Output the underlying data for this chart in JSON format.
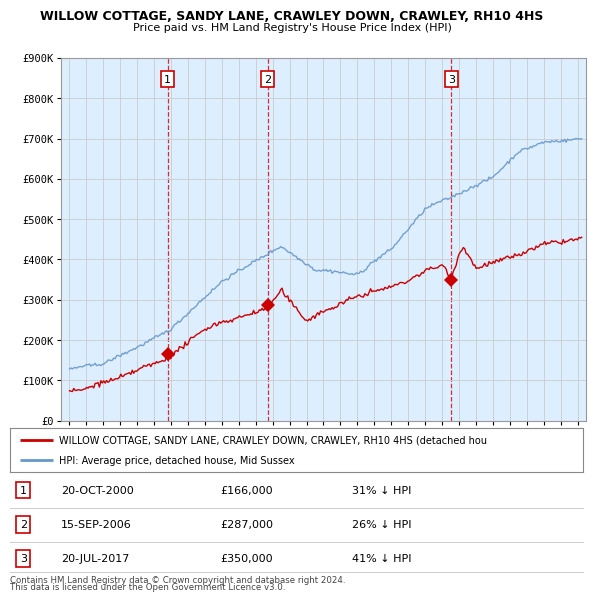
{
  "title": "WILLOW COTTAGE, SANDY LANE, CRAWLEY DOWN, CRAWLEY, RH10 4HS",
  "subtitle": "Price paid vs. HM Land Registry's House Price Index (HPI)",
  "ylim": [
    0,
    900000
  ],
  "xlim_start": 1994.5,
  "xlim_end": 2025.5,
  "sale_dates": [
    2000.8,
    2006.7,
    2017.55
  ],
  "sale_prices": [
    166000,
    287000,
    350000
  ],
  "sale_labels": [
    "1",
    "2",
    "3"
  ],
  "sale_date_strs": [
    "20-OCT-2000",
    "15-SEP-2006",
    "20-JUL-2017"
  ],
  "sale_price_strs": [
    "£166,000",
    "£287,000",
    "£350,000"
  ],
  "sale_hpi_strs": [
    "31% ↓ HPI",
    "26% ↓ HPI",
    "41% ↓ HPI"
  ],
  "legend_red": "WILLOW COTTAGE, SANDY LANE, CRAWLEY DOWN, CRAWLEY, RH10 4HS (detached hou",
  "legend_blue": "HPI: Average price, detached house, Mid Sussex",
  "footer1": "Contains HM Land Registry data © Crown copyright and database right 2024.",
  "footer2": "This data is licensed under the Open Government Licence v3.0.",
  "red_color": "#cc0000",
  "blue_color": "#6699cc",
  "grid_color": "#cccccc",
  "background_color": "#ffffff",
  "plot_bg_color": "#ddeeff"
}
